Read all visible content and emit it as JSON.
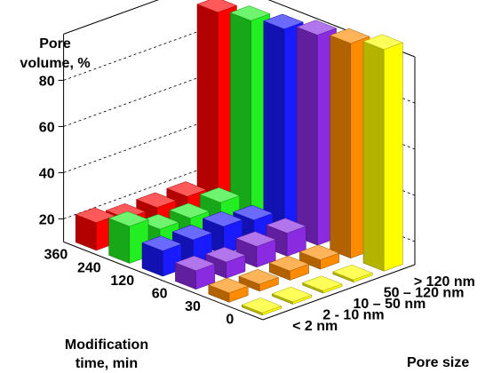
{
  "chart_data": {
    "type": "bar3d",
    "title": "",
    "z_axis_label_lines": [
      "Pore",
      "volume, %"
    ],
    "z_ticks": [
      20,
      40,
      60,
      80
    ],
    "z_range": [
      10,
      100
    ],
    "time_axis_label_lines": [
      "Modification",
      "time, min"
    ],
    "time_categories": [
      "0",
      "30",
      "60",
      "120",
      "240",
      "360"
    ],
    "pore_axis_label": "Pore size",
    "pore_categories": [
      "< 2 nm",
      "2 - 10 nm",
      "10 – 50 nm",
      "50 – 120 nm",
      "> 120 nm"
    ],
    "series": [
      {
        "time": "360",
        "values": [
          12,
          9,
          9,
          9,
          84
        ]
      },
      {
        "time": "240",
        "values": [
          16,
          10,
          10,
          12,
          86
        ]
      },
      {
        "time": "120",
        "values": [
          11,
          11,
          12,
          10,
          88
        ]
      },
      {
        "time": "60",
        "values": [
          8,
          7,
          9,
          10,
          91
        ]
      },
      {
        "time": "30",
        "values": [
          4,
          3,
          4,
          4,
          93
        ]
      },
      {
        "time": "0",
        "values": [
          1,
          1,
          1,
          1,
          96
        ]
      }
    ],
    "colors": {
      "360": "#ff0000",
      "240": "#22ee22",
      "120": "#1a1aff",
      "60": "#8a2be2",
      "30": "#ff8c00",
      "0": "#ffff00"
    }
  }
}
